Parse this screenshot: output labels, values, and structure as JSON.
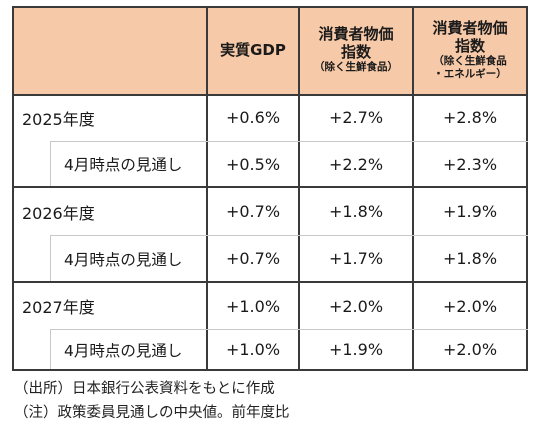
{
  "table": {
    "headers": [
      {
        "title": "実質GDP",
        "sub": ""
      },
      {
        "title": "消費者物価\n指数",
        "sub": "（除く生鮮食品）"
      },
      {
        "title": "消費者物価\n指数",
        "sub": "（除く生鮮食品\n・エネルギー）"
      }
    ],
    "rows": [
      {
        "label": "2025年度",
        "values": [
          "+0.6%",
          "+2.7%",
          "+2.8%"
        ]
      },
      {
        "label": "4月時点の見通し",
        "values": [
          "+0.5%",
          "+2.2%",
          "+2.3%"
        ]
      },
      {
        "label": "2026年度",
        "values": [
          "+0.7%",
          "+1.8%",
          "+1.9%"
        ]
      },
      {
        "label": "4月時点の見通し",
        "values": [
          "+0.7%",
          "+1.7%",
          "+1.8%"
        ]
      },
      {
        "label": "2027年度",
        "values": [
          "+1.0%",
          "+2.0%",
          "+2.0%"
        ]
      },
      {
        "label": "4月時点の見通し",
        "values": [
          "+1.0%",
          "+1.9%",
          "+2.0%"
        ]
      }
    ]
  },
  "notes": [
    "（出所）日本銀行公表資料をもとに作成",
    "（注）政策委員見通しの中央値。前年度比"
  ],
  "colors": {
    "header_bg": "#f6c9a8"
  }
}
